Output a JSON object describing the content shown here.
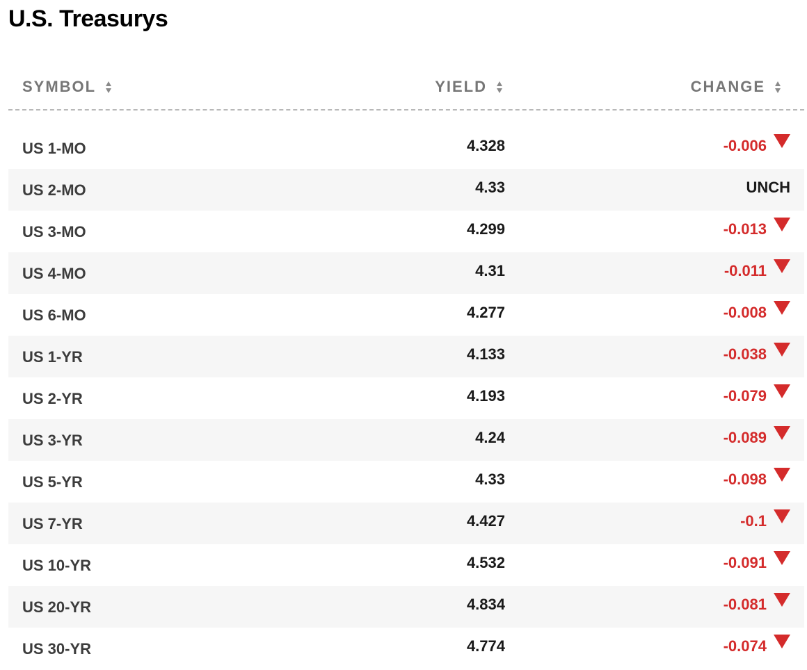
{
  "title": "U.S. Treasurys",
  "columns": {
    "symbol": "SYMBOL",
    "yield": "YIELD",
    "change": "CHANGE"
  },
  "colors": {
    "negative": "#d42b2b",
    "header": "#767676",
    "stripe": "#f6f6f6"
  },
  "rows": [
    {
      "symbol": "US 1-MO",
      "yield": "4.328",
      "change": "-0.006",
      "direction": "down"
    },
    {
      "symbol": "US 2-MO",
      "yield": "4.33",
      "change": "UNCH",
      "direction": "none"
    },
    {
      "symbol": "US 3-MO",
      "yield": "4.299",
      "change": "-0.013",
      "direction": "down"
    },
    {
      "symbol": "US 4-MO",
      "yield": "4.31",
      "change": "-0.011",
      "direction": "down"
    },
    {
      "symbol": "US 6-MO",
      "yield": "4.277",
      "change": "-0.008",
      "direction": "down"
    },
    {
      "symbol": "US 1-YR",
      "yield": "4.133",
      "change": "-0.038",
      "direction": "down"
    },
    {
      "symbol": "US 2-YR",
      "yield": "4.193",
      "change": "-0.079",
      "direction": "down"
    },
    {
      "symbol": "US 3-YR",
      "yield": "4.24",
      "change": "-0.089",
      "direction": "down"
    },
    {
      "symbol": "US 5-YR",
      "yield": "4.33",
      "change": "-0.098",
      "direction": "down"
    },
    {
      "symbol": "US 7-YR",
      "yield": "4.427",
      "change": "-0.1",
      "direction": "down"
    },
    {
      "symbol": "US 10-YR",
      "yield": "4.532",
      "change": "-0.091",
      "direction": "down"
    },
    {
      "symbol": "US 20-YR",
      "yield": "4.834",
      "change": "-0.081",
      "direction": "down"
    },
    {
      "symbol": "US 30-YR",
      "yield": "4.774",
      "change": "-0.074",
      "direction": "down"
    }
  ]
}
